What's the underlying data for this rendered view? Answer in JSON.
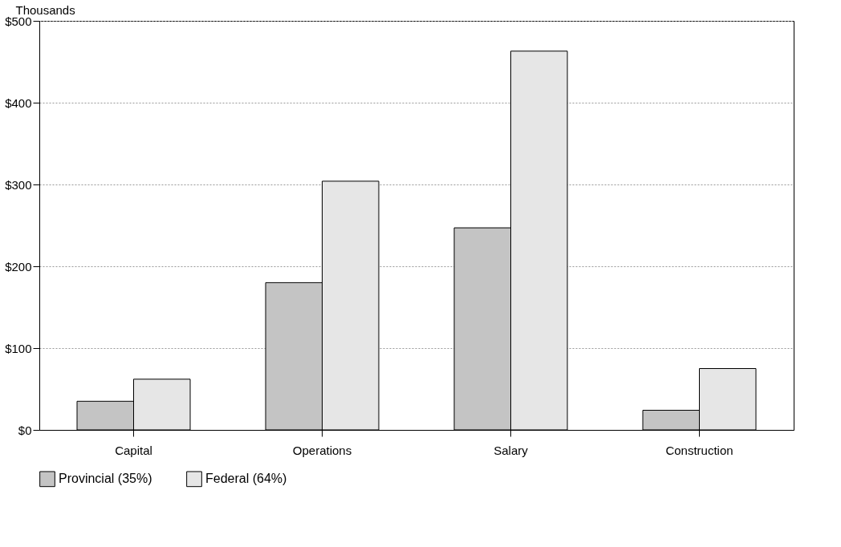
{
  "chart_data": {
    "type": "bar",
    "ylabel": "Thousands",
    "categories": [
      "Capital",
      "Operations",
      "Salary",
      "Construction"
    ],
    "series": [
      {
        "name": "Provincial (35%)",
        "color": "#c4c4c4",
        "values": [
          35,
          180,
          247,
          24
        ]
      },
      {
        "name": "Federal (64%)",
        "color": "#e6e6e6",
        "values": [
          62,
          304,
          463,
          75
        ]
      }
    ],
    "ylim": [
      0,
      500
    ],
    "yticks": [
      {
        "value": 0,
        "label": "$0"
      },
      {
        "value": 100,
        "label": "$100"
      },
      {
        "value": 200,
        "label": "$200"
      },
      {
        "value": 300,
        "label": "$300"
      },
      {
        "value": 400,
        "label": "$400"
      },
      {
        "value": 500,
        "label": "$500"
      }
    ],
    "grid": "y",
    "legend": "bottom"
  }
}
